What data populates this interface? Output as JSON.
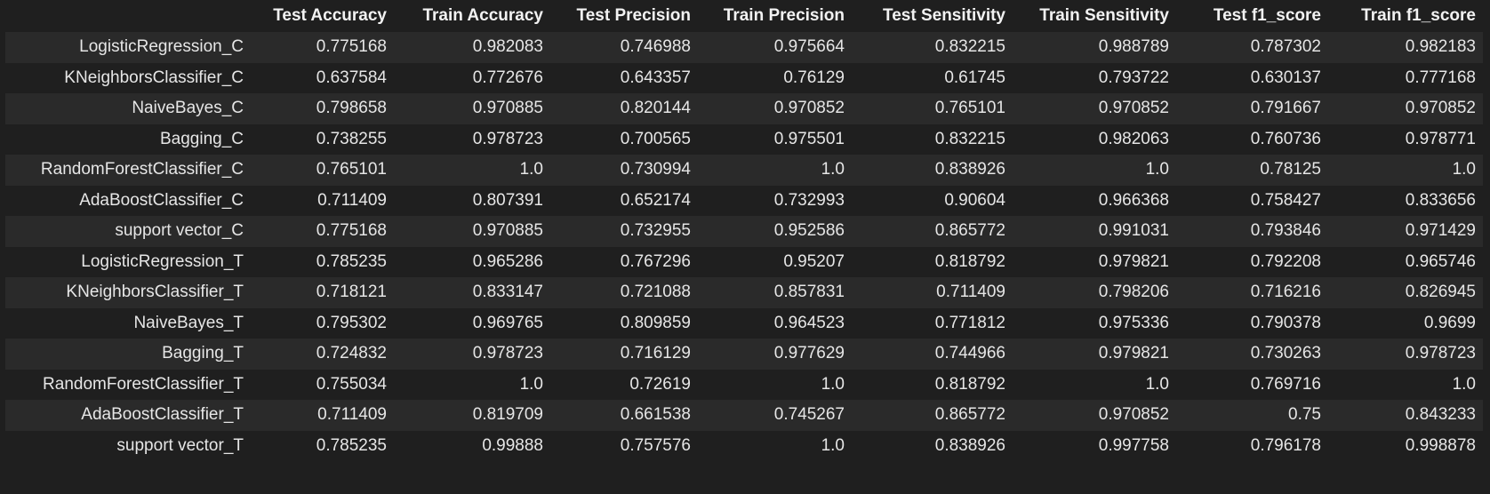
{
  "table": {
    "columns": [
      "",
      "Test Accuracy",
      "Train Accuracy",
      "Test Precision",
      "Train Precision",
      "Test Sensitivity",
      "Train Sensitivity",
      "Test f1_score",
      "Train f1_score"
    ],
    "rows": [
      [
        "LogisticRegression_C",
        "0.775168",
        "0.982083",
        "0.746988",
        "0.975664",
        "0.832215",
        "0.988789",
        "0.787302",
        "0.982183"
      ],
      [
        "KNeighborsClassifier_C",
        "0.637584",
        "0.772676",
        "0.643357",
        "0.76129",
        "0.61745",
        "0.793722",
        "0.630137",
        "0.777168"
      ],
      [
        "NaiveBayes_C",
        "0.798658",
        "0.970885",
        "0.820144",
        "0.970852",
        "0.765101",
        "0.970852",
        "0.791667",
        "0.970852"
      ],
      [
        "Bagging_C",
        "0.738255",
        "0.978723",
        "0.700565",
        "0.975501",
        "0.832215",
        "0.982063",
        "0.760736",
        "0.978771"
      ],
      [
        "RandomForestClassifier_C",
        "0.765101",
        "1.0",
        "0.730994",
        "1.0",
        "0.838926",
        "1.0",
        "0.78125",
        "1.0"
      ],
      [
        "AdaBoostClassifier_C",
        "0.711409",
        "0.807391",
        "0.652174",
        "0.732993",
        "0.90604",
        "0.966368",
        "0.758427",
        "0.833656"
      ],
      [
        "support vector_C",
        "0.775168",
        "0.970885",
        "0.732955",
        "0.952586",
        "0.865772",
        "0.991031",
        "0.793846",
        "0.971429"
      ],
      [
        "LogisticRegression_T",
        "0.785235",
        "0.965286",
        "0.767296",
        "0.95207",
        "0.818792",
        "0.979821",
        "0.792208",
        "0.965746"
      ],
      [
        "KNeighborsClassifier_T",
        "0.718121",
        "0.833147",
        "0.721088",
        "0.857831",
        "0.711409",
        "0.798206",
        "0.716216",
        "0.826945"
      ],
      [
        "NaiveBayes_T",
        "0.795302",
        "0.969765",
        "0.809859",
        "0.964523",
        "0.771812",
        "0.975336",
        "0.790378",
        "0.9699"
      ],
      [
        "Bagging_T",
        "0.724832",
        "0.978723",
        "0.716129",
        "0.977629",
        "0.744966",
        "0.979821",
        "0.730263",
        "0.978723"
      ],
      [
        "RandomForestClassifier_T",
        "0.755034",
        "1.0",
        "0.72619",
        "1.0",
        "0.818792",
        "1.0",
        "0.769716",
        "1.0"
      ],
      [
        "AdaBoostClassifier_T",
        "0.711409",
        "0.819709",
        "0.661538",
        "0.745267",
        "0.865772",
        "0.970852",
        "0.75",
        "0.843233"
      ],
      [
        "support vector_T",
        "0.785235",
        "0.99888",
        "0.757576",
        "1.0",
        "0.838926",
        "0.997758",
        "0.796178",
        "0.998878"
      ]
    ]
  }
}
